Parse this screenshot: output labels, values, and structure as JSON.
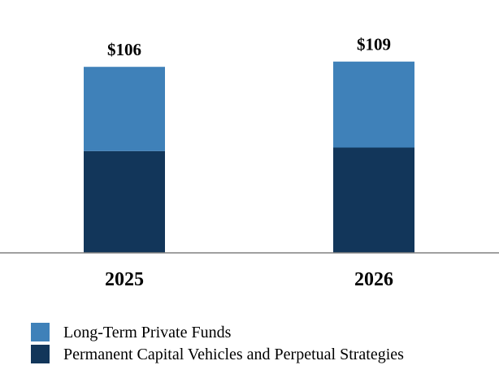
{
  "chart_data": {
    "type": "bar",
    "stacked": true,
    "categories": [
      "2025",
      "2026"
    ],
    "series": [
      {
        "name": "Permanent Capital Vehicles and Perpetual Strategies",
        "values": [
          58,
          60
        ],
        "color": "#12365a"
      },
      {
        "name": "Long-Term Private Funds",
        "values": [
          48,
          49
        ],
        "color": "#3f81b9"
      }
    ],
    "totals": [
      "$106",
      "$109"
    ],
    "ylim": [
      0,
      120
    ],
    "grid": false,
    "legend_position": "bottom-left",
    "axis_color": "#808080"
  }
}
